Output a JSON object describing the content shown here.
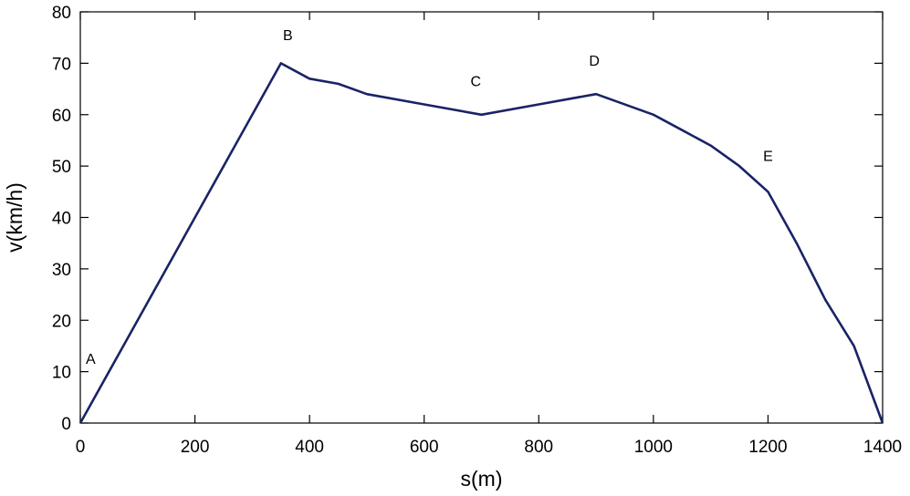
{
  "chart_data": {
    "type": "line",
    "xlabel": "s(m)",
    "ylabel": "v(km/h)",
    "xlim": [
      0,
      1400
    ],
    "ylim": [
      0,
      80
    ],
    "xticks": [
      0,
      200,
      400,
      600,
      800,
      1000,
      1200,
      1400
    ],
    "yticks": [
      0,
      10,
      20,
      30,
      40,
      50,
      60,
      70,
      80
    ],
    "grid": false,
    "line_color": "#1a2366",
    "series": [
      {
        "x": [
          0,
          350,
          400,
          450,
          500,
          600,
          700,
          800,
          850,
          900,
          1000,
          1050,
          1100,
          1150,
          1200,
          1250,
          1300,
          1350,
          1400
        ],
        "y": [
          0,
          70,
          67,
          66,
          64,
          62,
          60,
          62,
          63,
          64,
          60,
          57,
          54,
          50,
          45,
          35,
          24,
          15,
          0
        ]
      }
    ],
    "annotations": [
      {
        "text": "A",
        "x": 18,
        "y": 11.5
      },
      {
        "text": "B",
        "x": 362,
        "y": 74.5
      },
      {
        "text": "C",
        "x": 690,
        "y": 65.5
      },
      {
        "text": "D",
        "x": 897,
        "y": 69.5
      },
      {
        "text": "E",
        "x": 1200,
        "y": 51
      }
    ]
  }
}
